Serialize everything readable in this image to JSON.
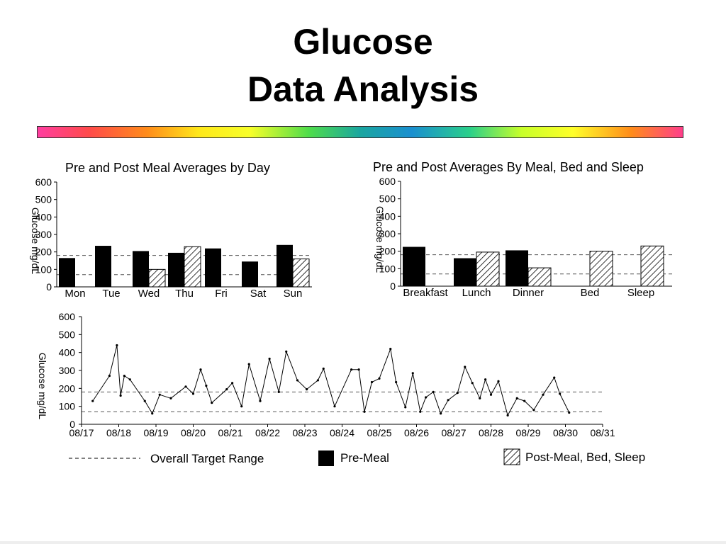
{
  "slide": {
    "title_line1": "Glucose",
    "title_line2": "Data Analysis",
    "rainbow_colors": [
      "#ff3ea0",
      "#ff4a4a",
      "#ff8c1a",
      "#ffe81a",
      "#f7ff2a",
      "#4fdd4a",
      "#1aa6a0",
      "#1a8fd0",
      "#2ad08a",
      "#c8ff2a",
      "#ffff2a",
      "#ff8c1a",
      "#ff3e8a"
    ]
  },
  "chart_data": [
    {
      "type": "bar",
      "title": "Pre and Post Meal Averages by Day",
      "ylabel": "Glucose mg/dL",
      "ylim": [
        0,
        600
      ],
      "yticks": [
        0,
        100,
        200,
        300,
        400,
        500,
        600
      ],
      "target_range": [
        70,
        180
      ],
      "categories": [
        "Mon",
        "Tue",
        "Wed",
        "Thu",
        "Fri",
        "Sat",
        "Sun"
      ],
      "series": [
        {
          "name": "Pre-Meal",
          "values": [
            165,
            235,
            205,
            195,
            220,
            145,
            240
          ]
        },
        {
          "name": "Post-Meal, Bed, Sleep",
          "values": [
            null,
            null,
            100,
            230,
            null,
            null,
            160
          ]
        }
      ]
    },
    {
      "type": "bar",
      "title": "Pre and Post Averages By Meal, Bed and Sleep",
      "ylabel": "Glucose mg/dL",
      "ylim": [
        0,
        600
      ],
      "yticks": [
        0,
        100,
        200,
        300,
        400,
        500,
        600
      ],
      "target_range": [
        70,
        180
      ],
      "categories": [
        "Breakfast",
        "Lunch",
        "Dinner",
        "Bed",
        "Sleep"
      ],
      "series": [
        {
          "name": "Pre-Meal",
          "values": [
            225,
            160,
            205,
            null,
            null
          ]
        },
        {
          "name": "Post-Meal, Bed, Sleep",
          "values": [
            null,
            195,
            105,
            200,
            230
          ]
        }
      ]
    },
    {
      "type": "line",
      "ylabel": "Glucose mg/dL",
      "ylim": [
        0,
        600
      ],
      "yticks": [
        0,
        100,
        200,
        300,
        400,
        500,
        600
      ],
      "target_range": [
        70,
        180
      ],
      "xlim": [
        "08/17",
        "08/31"
      ],
      "xticks": [
        "08/17",
        "08/18",
        "08/19",
        "08/20",
        "08/21",
        "08/22",
        "08/23",
        "08/24",
        "08/25",
        "08/26",
        "08/27",
        "08/28",
        "08/29",
        "08/30",
        "08/31"
      ],
      "x": [
        0.3,
        0.75,
        0.95,
        1.05,
        1.15,
        1.3,
        1.7,
        1.9,
        2.1,
        2.4,
        2.8,
        3.0,
        3.2,
        3.35,
        3.5,
        3.9,
        4.05,
        4.3,
        4.5,
        4.8,
        5.05,
        5.3,
        5.5,
        5.8,
        6.05,
        6.35,
        6.5,
        6.8,
        7.25,
        7.45,
        7.6,
        7.8,
        8.0,
        8.3,
        8.45,
        8.7,
        8.9,
        9.1,
        9.25,
        9.45,
        9.65,
        9.85,
        10.1,
        10.3,
        10.5,
        10.7,
        10.85,
        11.0,
        11.2,
        11.45,
        11.7,
        11.9,
        12.15,
        12.4,
        12.7,
        12.85,
        13.1
      ],
      "y": [
        130,
        270,
        440,
        160,
        270,
        250,
        130,
        60,
        165,
        145,
        210,
        170,
        305,
        215,
        120,
        195,
        230,
        100,
        335,
        130,
        365,
        180,
        405,
        245,
        195,
        245,
        310,
        100,
        305,
        305,
        70,
        235,
        255,
        420,
        235,
        95,
        285,
        70,
        150,
        180,
        60,
        135,
        175,
        320,
        230,
        145,
        250,
        165,
        240,
        50,
        145,
        130,
        80,
        165,
        260,
        170,
        65
      ]
    }
  ],
  "legend": {
    "target_label": "Overall Target Range",
    "pre_label": "Pre-Meal",
    "post_label": "Post-Meal, Bed, Sleep"
  }
}
